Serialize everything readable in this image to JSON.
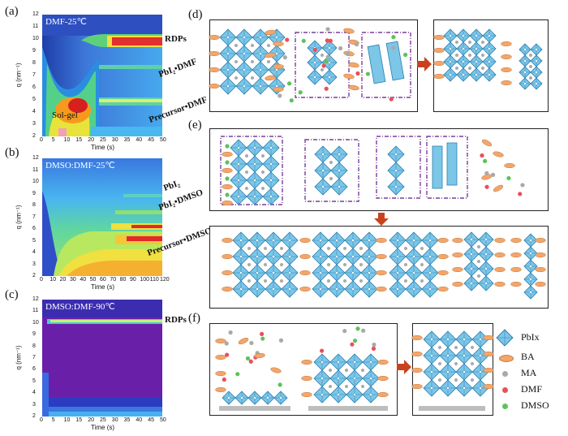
{
  "panels": {
    "a": {
      "label": "(a)",
      "title": "DMF-25℃",
      "annot": "Sol-gel",
      "side_labels": [
        "RDPs",
        "PbI₂•DMF",
        "Precursor•DMF"
      ],
      "x_ticks": [
        "0",
        "5",
        "10",
        "15",
        "20",
        "25",
        "30",
        "35",
        "40",
        "45",
        "50"
      ]
    },
    "b": {
      "label": "(b)",
      "title": "DMSO:DMF-25℃",
      "side_labels": [
        "PbI₂",
        "PbI₂•DMSO",
        "Precursor•DMSO"
      ],
      "x_ticks": [
        "0",
        "10",
        "20",
        "30",
        "40",
        "50",
        "60",
        "70",
        "80",
        "90",
        "100",
        "110",
        "120"
      ]
    },
    "c": {
      "label": "(c)",
      "title": "DMSO:DMF-90℃",
      "side_labels": [
        "RDPs"
      ],
      "x_ticks": [
        "0",
        "5",
        "10",
        "15",
        "20",
        "25",
        "30",
        "35",
        "40",
        "45",
        "50"
      ]
    },
    "d": {
      "label": "(d)"
    },
    "e": {
      "label": "(e)"
    },
    "f": {
      "label": "(f)"
    }
  },
  "axes": {
    "y_title": "q (nm⁻¹)",
    "x_title": "Time (s)",
    "y_ticks": [
      "2",
      "3",
      "4",
      "5",
      "6",
      "7",
      "8",
      "9",
      "10",
      "11",
      "12"
    ]
  },
  "legend": [
    {
      "label": "PbIx",
      "symbol": "octahedron",
      "color": "#5bb4dc"
    },
    {
      "label": "BA",
      "symbol": "ellipse",
      "color": "#f2a66b"
    },
    {
      "label": "MA",
      "symbol": "dot",
      "color": "#a9a9a9"
    },
    {
      "label": "DMF",
      "symbol": "dot",
      "color": "#e8505b"
    },
    {
      "label": "DMSO",
      "symbol": "dot",
      "color": "#5ec25a"
    }
  ],
  "colors": {
    "octa_fill": "#7cc6e8",
    "octa_stroke": "#2a7fb0",
    "frame_dash": "#7a3d9a",
    "arrow": "#c8431d",
    "substrate": "#bdbdbd"
  }
}
